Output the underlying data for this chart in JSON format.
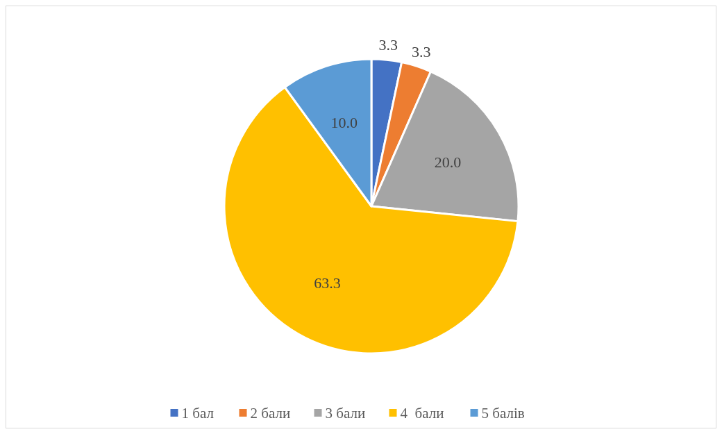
{
  "chart_data": {
    "type": "pie",
    "categories": [
      "1 бал",
      "2 бали",
      "3 бали",
      "4  бали",
      "5 балів"
    ],
    "values": [
      3.3,
      3.3,
      20.0,
      63.3,
      10.0
    ],
    "colors": [
      "#4472c4",
      "#ed7d31",
      "#a5a5a5",
      "#ffc000",
      "#5b9bd5"
    ],
    "value_labels": [
      "3.3",
      "3.3",
      "20.0",
      "63.3",
      "10.0"
    ],
    "legend": "bottom"
  }
}
